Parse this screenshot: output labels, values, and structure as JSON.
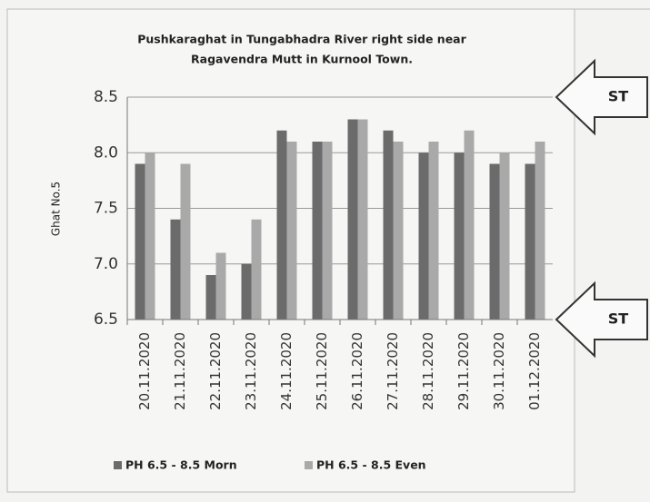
{
  "chart_data": {
    "type": "bar",
    "title": [
      "Pushkaraghat in Tungabhadra River right side near",
      "Ragavendra Mutt in Kurnool Town."
    ],
    "y_label": "Ghat No.5",
    "categories": [
      "20.11.2020",
      "21.11.2020",
      "22.11.2020",
      "23.11.2020",
      "24.11.2020",
      "25.11.2020",
      "26.11.2020",
      "27.11.2020",
      "28.11.2020",
      "29.11.2020",
      "30.11.2020",
      "01.12.2020"
    ],
    "series": [
      {
        "name": "PH 6.5  - 8.5 Morn",
        "color": "#6b6b6b",
        "values": [
          7.9,
          7.4,
          6.9,
          7.0,
          8.2,
          8.1,
          8.3,
          8.2,
          8.0,
          8.0,
          7.9,
          7.9
        ]
      },
      {
        "name": "PH 6.5  - 8.5 Even",
        "color": "#a9a9a9",
        "values": [
          8.0,
          7.9,
          7.1,
          7.4,
          8.1,
          8.1,
          8.3,
          8.1,
          8.1,
          8.2,
          8.0,
          8.1
        ]
      }
    ],
    "ylim": [
      6.5,
      8.5
    ],
    "yticks": [
      6.5,
      {
        "value": 7,
        "label": "7.0"
      },
      7.5,
      {
        "value": 8,
        "label": "8.0"
      },
      8.5
    ],
    "grid": true,
    "legend": "bottom",
    "annotations": [
      {
        "text": "ST",
        "value": 8.5
      },
      {
        "text": "ST",
        "value": 6.5
      }
    ]
  }
}
